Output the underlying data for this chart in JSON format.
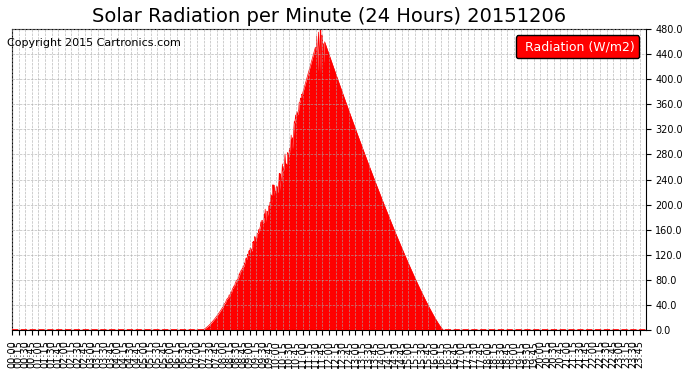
{
  "title": "Solar Radiation per Minute (24 Hours) 20151206",
  "copyright_text": "Copyright 2015 Cartronics.com",
  "legend_label": "Radiation (W/m2)",
  "legend_bg": "#ff0000",
  "legend_text_color": "#ffffff",
  "fill_color": "#ff0000",
  "line_color": "#ff0000",
  "dashed_line_color": "#ff0000",
  "grid_color": "#aaaaaa",
  "background_color": "#ffffff",
  "plot_bg_color": "#ffffff",
  "ylim": [
    0.0,
    480.0
  ],
  "ytick_values": [
    0.0,
    40.0,
    80.0,
    120.0,
    160.0,
    200.0,
    240.0,
    280.0,
    320.0,
    360.0,
    400.0,
    440.0,
    480.0
  ],
  "title_fontsize": 14,
  "copyright_fontsize": 8,
  "tick_fontsize": 7,
  "legend_fontsize": 9,
  "peak_value": 480.0,
  "sunrise": 430,
  "sunset": 980,
  "peak_time": 700,
  "total_minutes": 1440
}
